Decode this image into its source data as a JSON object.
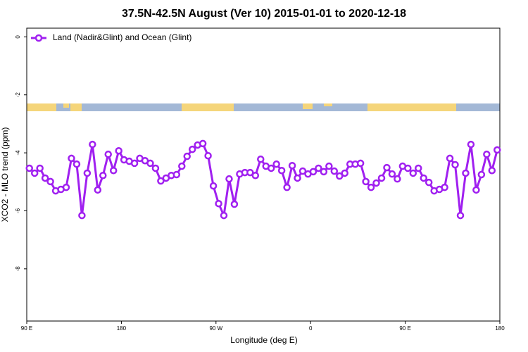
{
  "chart_data": {
    "type": "line",
    "title": "37.5N-42.5N August (Ver 10)   2015-01-01 to 2020-12-18",
    "x_label": "Longitude (deg E)",
    "y_label": "XCO2 - MLO trend (ppm)",
    "xlim": [
      90,
      540
    ],
    "ylim": [
      -9.8,
      0.3
    ],
    "xticks": [
      {
        "value": 90,
        "label": "90 E"
      },
      180,
      {
        "value": 270,
        "label": "90 W"
      },
      {
        "value": 360,
        "label": "0"
      },
      {
        "value": 450,
        "label": "90 E"
      },
      {
        "value": 540,
        "label": "180"
      }
    ],
    "yticks": [
      0,
      -2,
      -4,
      -6,
      -8
    ],
    "legend": "upper left",
    "x": [
      92.5,
      97.5,
      102.5,
      107.5,
      112.5,
      117.5,
      122.5,
      127.5,
      132.5,
      137.5,
      142.5,
      147.5,
      152.5,
      157.5,
      162.5,
      167.5,
      172.5,
      177.5,
      182.5,
      187.5,
      192.5,
      197.5,
      202.5,
      207.5,
      212.5,
      217.5,
      222.5,
      227.5,
      232.5,
      237.5,
      242.5,
      247.5,
      252.5,
      257.5,
      262.5,
      267.5,
      272.5,
      277.5,
      282.5,
      287.5,
      292.5,
      297.5,
      302.5,
      307.5,
      312.5,
      317.5,
      322.5,
      327.5,
      332.5,
      337.5,
      342.5,
      347.5,
      352.5,
      357.5,
      362.5,
      367.5,
      372.5,
      377.5,
      382.5,
      387.5,
      392.5,
      397.5,
      402.5,
      407.5,
      412.5,
      417.5,
      422.5,
      427.5,
      432.5,
      437.5,
      442.5,
      447.5,
      452.5,
      457.5,
      462.5,
      467.5,
      472.5,
      477.5,
      482.5,
      487.5,
      492.5,
      497.5,
      502.5,
      507.5,
      512.5,
      517.5,
      522.5,
      527.5,
      532.5,
      537.5
    ],
    "series": [
      {
        "name": "Land (Nadir&Glint) and Ocean (Glint)",
        "color": "#a020f0",
        "values": [
          -4.53,
          -4.7,
          -4.53,
          -4.87,
          -4.99,
          -5.31,
          -5.26,
          -5.19,
          -4.19,
          -4.39,
          -6.16,
          -4.7,
          -3.71,
          -5.28,
          -4.78,
          -4.05,
          -4.61,
          -3.93,
          -4.24,
          -4.29,
          -4.36,
          -4.19,
          -4.27,
          -4.36,
          -4.53,
          -4.97,
          -4.87,
          -4.78,
          -4.75,
          -4.46,
          -4.12,
          -3.88,
          -3.73,
          -3.68,
          -4.1,
          -5.14,
          -5.75,
          -6.16,
          -4.9,
          -5.77,
          -4.73,
          -4.68,
          -4.68,
          -4.78,
          -4.22,
          -4.46,
          -4.53,
          -4.39,
          -4.61,
          -5.19,
          -4.44,
          -4.87,
          -4.63,
          -4.73,
          -4.65,
          -4.53,
          -4.65,
          -4.46,
          -4.63,
          -4.8,
          -4.7,
          -4.39,
          -4.39,
          -4.36,
          -4.99,
          -5.19,
          -5.04,
          -4.87,
          -4.51,
          -4.73,
          -4.9,
          -4.46,
          -4.53,
          -4.7,
          -4.53,
          -4.87,
          -5.02,
          -5.31,
          -5.26,
          -5.19,
          -4.19,
          -4.41,
          -6.16,
          -4.7,
          -3.71,
          -5.28,
          -4.75,
          -4.05,
          -4.61,
          -3.9
        ]
      }
    ]
  }
}
